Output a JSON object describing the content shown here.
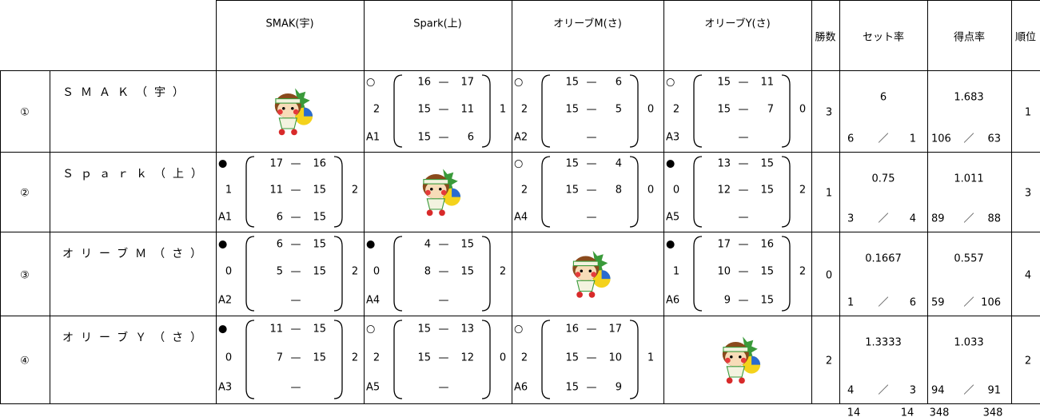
{
  "dash": "—",
  "slash": "／",
  "header": {
    "columns": [
      "SMAK(宇)",
      "Spark(上)",
      "オリーブM(さ)",
      "オリーブY(さ)",
      "勝数",
      "セット率",
      "得点率",
      "順位"
    ]
  },
  "rows": [
    {
      "mark": "①",
      "name": "ＳＭＡＫ（宇）",
      "matches": [
        null,
        {
          "result": "○",
          "sets_won": 2,
          "sets_lost": 1,
          "code": "A1",
          "scores": [
            [
              16,
              17
            ],
            [
              15,
              11
            ],
            [
              15,
              6
            ]
          ]
        },
        {
          "result": "○",
          "sets_won": 2,
          "sets_lost": 0,
          "code": "A2",
          "scores": [
            [
              15,
              6
            ],
            [
              15,
              5
            ],
            null
          ]
        },
        {
          "result": "○",
          "sets_won": 2,
          "sets_lost": 0,
          "code": "A3",
          "scores": [
            [
              15,
              11
            ],
            [
              15,
              7
            ],
            null
          ]
        }
      ],
      "wins": 3,
      "set_rate": 6,
      "sets_won": 6,
      "sets_lost": 1,
      "point_rate": 1.683,
      "points_for": 106,
      "points_against": 63,
      "rank": 1
    },
    {
      "mark": "②",
      "name": "Ｓｐａｒｋ（上）",
      "matches": [
        {
          "result": "●",
          "sets_won": 1,
          "sets_lost": 2,
          "code": "A1",
          "scores": [
            [
              17,
              16
            ],
            [
              11,
              15
            ],
            [
              6,
              15
            ]
          ]
        },
        null,
        {
          "result": "○",
          "sets_won": 2,
          "sets_lost": 0,
          "code": "A4",
          "scores": [
            [
              15,
              4
            ],
            [
              15,
              8
            ],
            null
          ]
        },
        {
          "result": "●",
          "sets_won": 0,
          "sets_lost": 2,
          "code": "A5",
          "scores": [
            [
              13,
              15
            ],
            [
              12,
              15
            ],
            null
          ]
        }
      ],
      "wins": 1,
      "set_rate": 0.75,
      "sets_won": 3,
      "sets_lost": 4,
      "point_rate": 1.011,
      "points_for": 89,
      "points_against": 88,
      "rank": 3
    },
    {
      "mark": "③",
      "name": "オリーブＭ（さ）",
      "matches": [
        {
          "result": "●",
          "sets_won": 0,
          "sets_lost": 2,
          "code": "A2",
          "scores": [
            [
              6,
              15
            ],
            [
              5,
              15
            ],
            null
          ]
        },
        {
          "result": "●",
          "sets_won": 0,
          "sets_lost": 2,
          "code": "A4",
          "scores": [
            [
              4,
              15
            ],
            [
              8,
              15
            ],
            null
          ]
        },
        null,
        {
          "result": "●",
          "sets_won": 1,
          "sets_lost": 2,
          "code": "A6",
          "scores": [
            [
              17,
              16
            ],
            [
              10,
              15
            ],
            [
              9,
              15
            ]
          ]
        }
      ],
      "wins": 0,
      "set_rate": 0.1667,
      "sets_won": 1,
      "sets_lost": 6,
      "point_rate": 0.557,
      "points_for": 59,
      "points_against": 106,
      "rank": 4
    },
    {
      "mark": "④",
      "name": "オリーブＹ（さ）",
      "matches": [
        {
          "result": "●",
          "sets_won": 0,
          "sets_lost": 2,
          "code": "A3",
          "scores": [
            [
              11,
              15
            ],
            [
              7,
              15
            ],
            null
          ]
        },
        {
          "result": "○",
          "sets_won": 2,
          "sets_lost": 0,
          "code": "A5",
          "scores": [
            [
              15,
              13
            ],
            [
              15,
              12
            ],
            null
          ]
        },
        {
          "result": "○",
          "sets_won": 2,
          "sets_lost": 1,
          "code": "A6",
          "scores": [
            [
              16,
              17
            ],
            [
              15,
              10
            ],
            [
              15,
              9
            ]
          ]
        },
        null
      ],
      "wins": 2,
      "set_rate": 1.3333,
      "sets_won": 4,
      "sets_lost": 3,
      "point_rate": 1.033,
      "points_for": 94,
      "points_against": 91,
      "rank": 2
    }
  ],
  "totals": [
    14,
    14,
    348,
    348
  ]
}
